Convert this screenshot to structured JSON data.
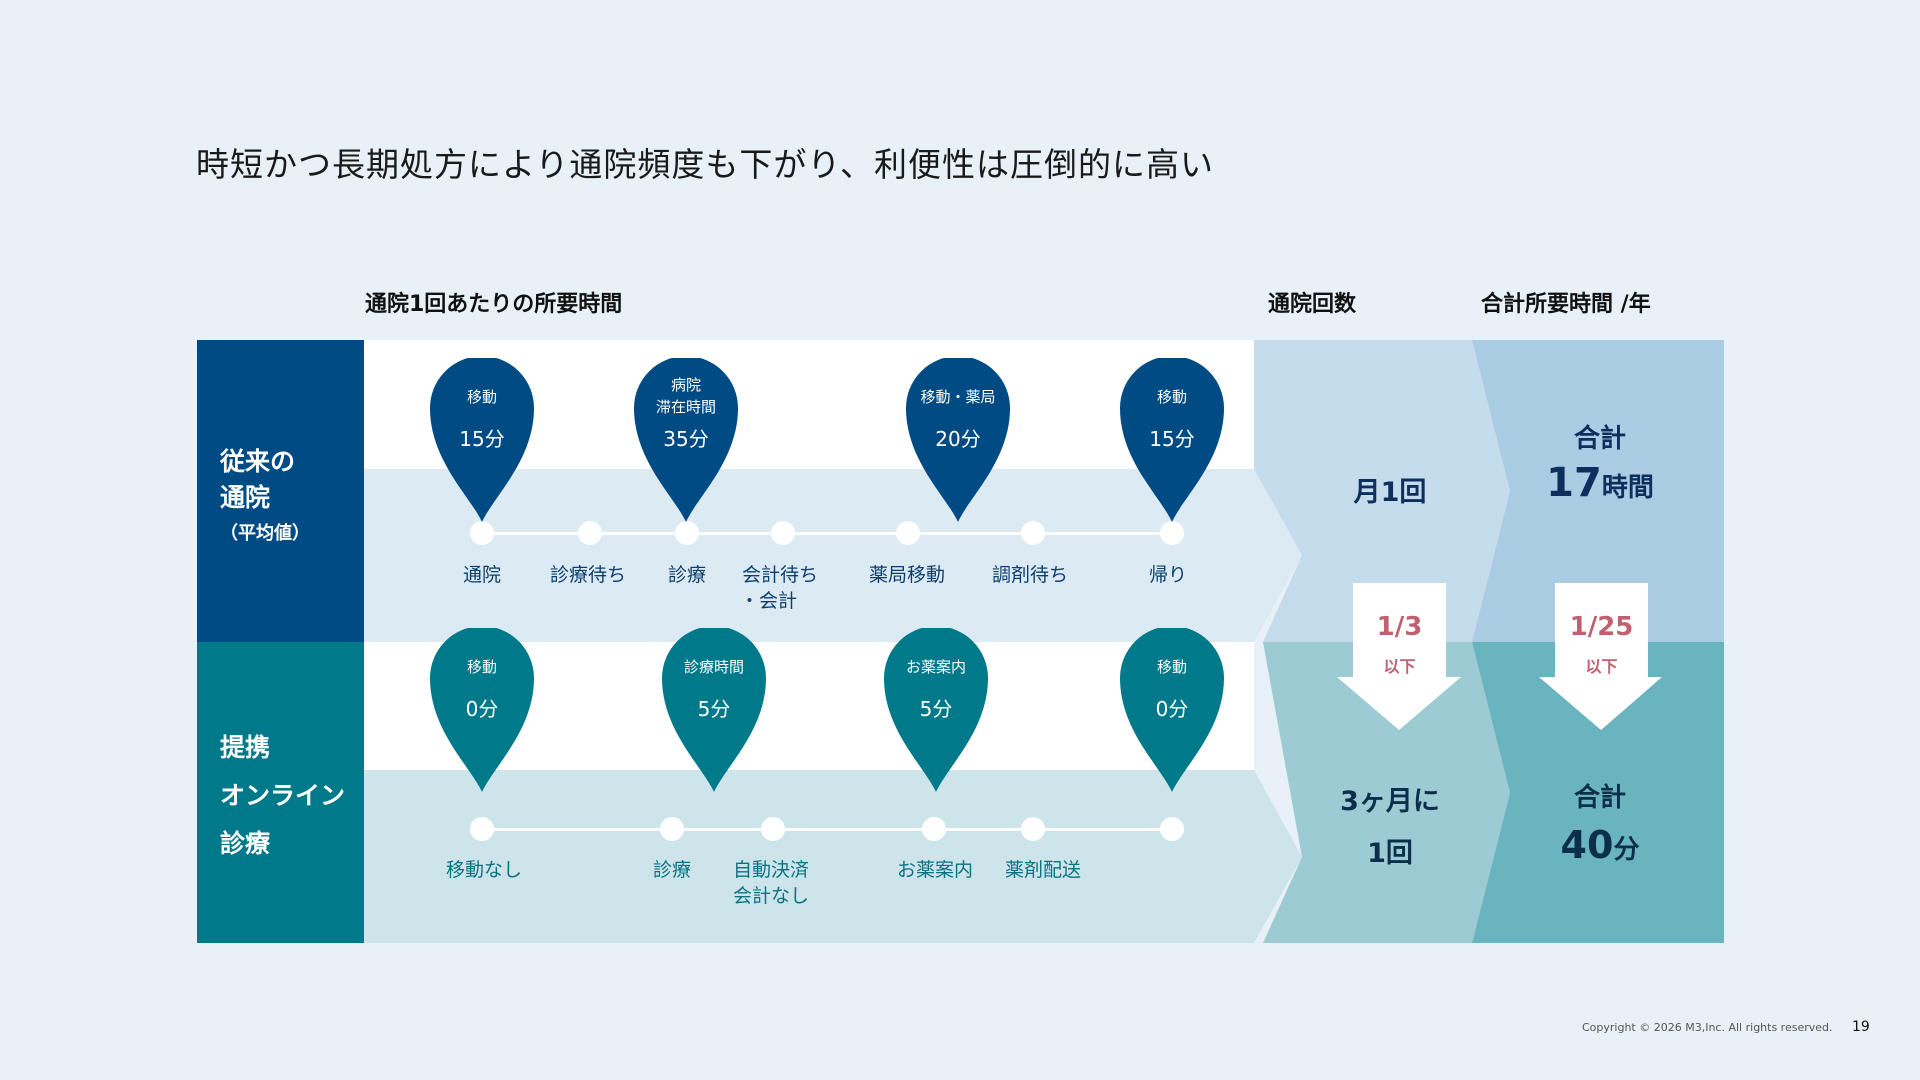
{
  "title": "時短かつ長期処方により通院頻度も下がり、利便性は圧倒的に高い",
  "headers": {
    "time_per_visit": "通院1回あたりの所要時間",
    "visit_count": "通院回数",
    "total_time": "合計所要時間 /年"
  },
  "traditional": {
    "label_line1": "従来の",
    "label_line2": "通院",
    "label_sub": "（平均値）",
    "pins": [
      {
        "name": "移動",
        "name2": "",
        "value": "15分"
      },
      {
        "name": "病院",
        "name2": "滞在時間",
        "value": "35分"
      },
      {
        "name": "移動・薬局",
        "name2": "",
        "value": "20分"
      },
      {
        "name": "移動",
        "name2": "",
        "value": "15分"
      }
    ],
    "steps": [
      {
        "line1": "通院",
        "line2": ""
      },
      {
        "line1": "診療待ち",
        "line2": ""
      },
      {
        "line1": "診療",
        "line2": ""
      },
      {
        "line1": "会計待ち",
        "line2": "・会計"
      },
      {
        "line1": "薬局移動",
        "line2": ""
      },
      {
        "line1": "調剤待ち",
        "line2": ""
      },
      {
        "line1": "帰り",
        "line2": ""
      }
    ],
    "visits": "月1回",
    "total_label": "合計",
    "total_number": "17",
    "total_unit": "時間"
  },
  "online": {
    "label_line1": "提携",
    "label_line2": "オンライン",
    "label_line3": "診療",
    "pins": [
      {
        "name": "移動",
        "value": "0分"
      },
      {
        "name": "診療時間",
        "value": "5分"
      },
      {
        "name": "お薬案内",
        "value": "5分"
      },
      {
        "name": "移動",
        "value": "0分"
      }
    ],
    "steps": [
      {
        "line1": "移動なし",
        "line2": ""
      },
      {
        "line1": "診療",
        "line2": ""
      },
      {
        "line1": "自動決済",
        "line2": "会計なし"
      },
      {
        "line1": "お薬案内",
        "line2": ""
      },
      {
        "line1": "薬剤配送",
        "line2": ""
      }
    ],
    "visits_line1": "3ヶ月に",
    "visits_line2": "1回",
    "total_label": "合計",
    "total_number": "40",
    "total_unit": "分"
  },
  "reduction": {
    "visits_ratio": "1/3",
    "visits_suffix": "以下",
    "total_ratio": "1/25",
    "total_suffix": "以下"
  },
  "footer": {
    "copyright": "Copyright © 2026  M3,Inc. All rights reserved.",
    "page": "19"
  },
  "colors": {
    "navy": "#004b84",
    "teal": "#007a8a",
    "ratio": "#c06070"
  }
}
